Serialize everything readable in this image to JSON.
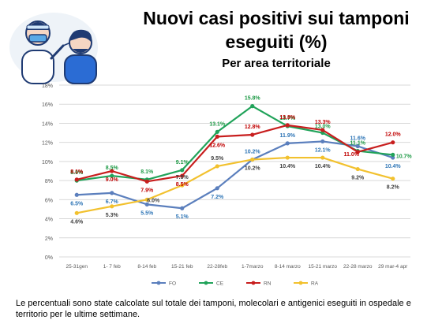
{
  "header": {
    "title": "Nuovi casi positivi sui tamponi eseguiti (%)",
    "subtitle": "Per area territoriale"
  },
  "footnote": "Le percentuali sono state calcolate sul totale dei tamponi, molecolari e antigenici eseguiti in ospedale e territorio per le ultime settimane.",
  "illustration": {
    "icon": "swab-test-illustration-icon"
  },
  "chart_data": {
    "type": "line",
    "title": "",
    "xlabel": "",
    "ylabel": "",
    "categories": [
      "25-31gen",
      "1- 7 feb",
      "8-14 feb",
      "15-21 feb",
      "22-28feb",
      "1-7marzo",
      "8-14 marzo",
      "15-21 marzo",
      "22-28 marzo",
      "29 mar-4 apr"
    ],
    "ylim": [
      0,
      18
    ],
    "yticks": [
      "0%",
      "2%",
      "4%",
      "6%",
      "8%",
      "10%",
      "12%",
      "14%",
      "16%",
      "18%"
    ],
    "grid": true,
    "legend_position": "bottom",
    "series": [
      {
        "name": "FO",
        "color": "#5b7fbd",
        "label_color": "#2e75b6",
        "values": [
          6.5,
          6.7,
          5.5,
          5.1,
          7.2,
          10.2,
          11.9,
          12.1,
          11.6,
          10.4
        ],
        "labels": [
          "6.5%",
          "6.7%",
          "5.5%",
          "5.1%",
          "7.2%",
          "10.2%",
          "11.9%",
          "12.1%",
          "11.6%",
          "10.4%"
        ]
      },
      {
        "name": "CE",
        "color": "#21a35a",
        "label_color": "#1e9a46",
        "values": [
          8.0,
          8.5,
          8.1,
          9.1,
          13.1,
          15.8,
          13.7,
          13.0,
          11.1,
          10.7
        ],
        "labels": [
          "8.0%",
          "8.5%",
          "8.1%",
          "9.1%",
          "13.1%",
          "15.8%",
          "13.7%",
          "13.0%",
          "11.1%",
          "10.7%"
        ]
      },
      {
        "name": "RN",
        "color": "#c81e1e",
        "label_color": "#c00000",
        "values": [
          8.1,
          9.0,
          7.9,
          8.5,
          12.6,
          12.8,
          13.8,
          13.3,
          11.0,
          12.0
        ],
        "labels": [
          "8.1%",
          "9.0%",
          "7.9%",
          "8.5%",
          "12.6%",
          "12.8%",
          "13.8%",
          "13.3%",
          "11.0%",
          "12.0%"
        ]
      },
      {
        "name": "RA",
        "color": "#f2c12e",
        "label_color": "#404040",
        "values": [
          4.6,
          5.3,
          6.0,
          7.5,
          9.5,
          10.2,
          10.4,
          10.4,
          9.2,
          8.2
        ],
        "labels": [
          "4.6%",
          "5.3%",
          "6.0%",
          "7.5%",
          "9.5%",
          "10.2%",
          "10.4%",
          "10.4%",
          "9.2%",
          "8.2%"
        ]
      }
    ]
  }
}
